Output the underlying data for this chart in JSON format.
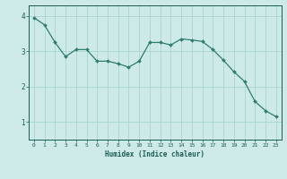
{
  "x": [
    0,
    1,
    2,
    3,
    4,
    5,
    6,
    7,
    8,
    9,
    10,
    11,
    12,
    13,
    14,
    15,
    16,
    17,
    18,
    19,
    20,
    21,
    22,
    23
  ],
  "y": [
    3.95,
    3.75,
    3.25,
    2.85,
    3.05,
    3.05,
    2.72,
    2.72,
    2.65,
    2.55,
    2.72,
    3.25,
    3.25,
    3.18,
    3.35,
    3.32,
    3.28,
    3.05,
    2.75,
    2.42,
    2.15,
    1.58,
    1.32,
    1.15
  ],
  "line_color": "#2e7d6e",
  "marker_color": "#2e7d6e",
  "bg_color": "#ceeae8",
  "grid_color": "#a8d5d0",
  "xlabel": "Humidex (Indice chaleur)",
  "xlabel_color": "#1a5c52",
  "tick_color": "#1a5c52",
  "ylim": [
    0.5,
    4.3
  ],
  "xlim": [
    -0.5,
    23.5
  ],
  "yticks": [
    1,
    2,
    3,
    4
  ],
  "xticks": [
    0,
    1,
    2,
    3,
    4,
    5,
    6,
    7,
    8,
    9,
    10,
    11,
    12,
    13,
    14,
    15,
    16,
    17,
    18,
    19,
    20,
    21,
    22,
    23
  ]
}
